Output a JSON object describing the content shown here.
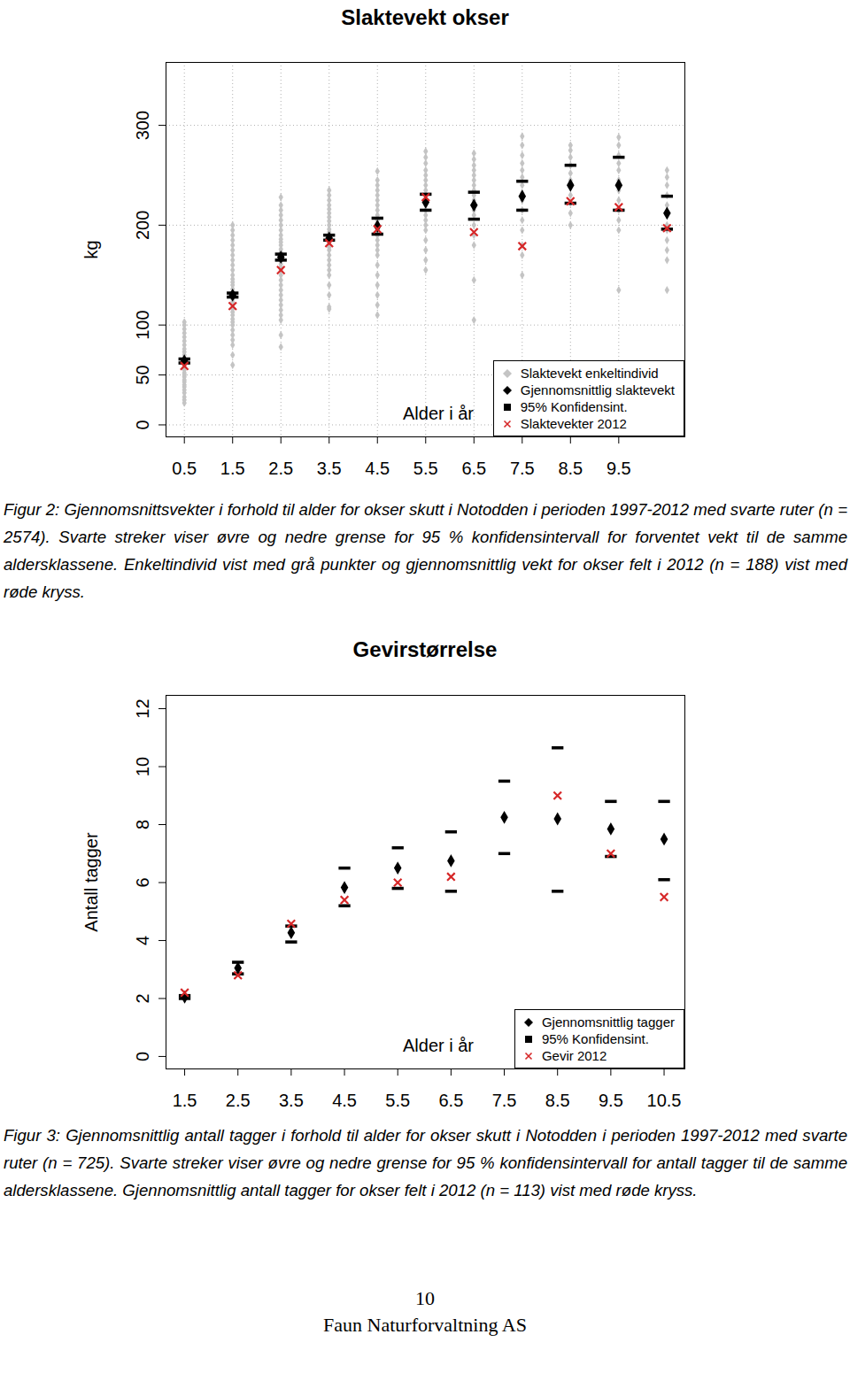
{
  "chart_data": [
    {
      "type": "scatter",
      "title": "Slaktevekt okser",
      "x_label": "Alder i år",
      "y_label": "kg",
      "x": [
        0.5,
        1.5,
        2.5,
        3.5,
        4.5,
        5.5,
        6.5,
        7.5,
        8.5,
        9.5,
        10.5
      ],
      "xlim": [
        0.12,
        10.87
      ],
      "xticks": [
        0.5,
        1.5,
        2.5,
        3.5,
        4.5,
        5.5,
        6.5,
        7.5,
        8.5,
        9.5
      ],
      "ylim": [
        -12,
        363
      ],
      "yticks": [
        0,
        50,
        100,
        200,
        300
      ],
      "grid": true,
      "legend": "bottom-right",
      "series": [
        {
          "name": "Slaktevekt enkeltindivid",
          "color": "#c4c4c4",
          "marker": "diamond",
          "values": [
            [
              22,
              25,
              28,
              32,
              35,
              38,
              40,
              43,
              45,
              48,
              50,
              52,
              55,
              58,
              60,
              63,
              66,
              70,
              73,
              76,
              80,
              84,
              88,
              92,
              96,
              100,
              103
            ],
            [
              60,
              70,
              80,
              85,
              90,
              95,
              100,
              103,
              106,
              110,
              113,
              116,
              120,
              123,
              126,
              130,
              133,
              136,
              140,
              143,
              146,
              150,
              155,
              160,
              165,
              170,
              175,
              180,
              185,
              190,
              195,
              200
            ],
            [
              78,
              90,
              105,
              110,
              115,
              120,
              125,
              130,
              135,
              140,
              145,
              150,
              155,
              158,
              161,
              164,
              167,
              170,
              173,
              176,
              180,
              183,
              186,
              190,
              195,
              200,
              205,
              210,
              215,
              220,
              228
            ],
            [
              116,
              118,
              130,
              140,
              150,
              155,
              160,
              165,
              170,
              175,
              178,
              181,
              184,
              187,
              190,
              193,
              196,
              200,
              204,
              208,
              212,
              216,
              220,
              225,
              230,
              235
            ],
            [
              110,
              120,
              130,
              140,
              150,
              160,
              170,
              175,
              180,
              185,
              190,
              195,
              200,
              205,
              210,
              215,
              220,
              225,
              230,
              235,
              240,
              245,
              254
            ],
            [
              155,
              165,
              175,
              185,
              195,
              200,
              205,
              210,
              215,
              220,
              225,
              230,
              235,
              240,
              245,
              250,
              255,
              262,
              268,
              274
            ],
            [
              105,
              145,
              180,
              190,
              200,
              210,
              215,
              220,
              225,
              230,
              235,
              240,
              245,
              250,
              255,
              260,
              266,
              272
            ],
            [
              150,
              170,
              180,
              195,
              205,
              215,
              225,
              232,
              240,
              248,
              255,
              262,
              270,
              280,
              289
            ],
            [
              200,
              212,
              222,
              230,
              238,
              245,
              252,
              260,
              268,
              275,
              280
            ],
            [
              135,
              195,
              205,
              215,
              225,
              235,
              245,
              255,
              262,
              270,
              280,
              288
            ],
            [
              135,
              165,
              175,
              185,
              195,
              200,
              210,
              220,
              230,
              240,
              248,
              255
            ]
          ]
        },
        {
          "name": "Gjennomsnittlig slaktevekt",
          "color": "#000000",
          "marker": "diamond",
          "values": [
            64,
            130,
            168,
            187,
            199,
            223,
            220,
            229,
            240,
            240,
            212
          ]
        },
        {
          "name": "95% Konfidensint.",
          "color": "#000000",
          "marker": "dash",
          "lower": [
            62,
            128,
            165,
            185,
            191,
            215,
            206,
            215,
            222,
            215,
            196
          ],
          "upper": [
            66,
            132,
            171,
            190,
            207,
            231,
            233,
            244,
            260,
            268,
            229
          ]
        },
        {
          "name": "Slaktevekter 2012",
          "color": "#d62728",
          "marker": "cross",
          "values": [
            59,
            119,
            155,
            182,
            196,
            228,
            193,
            179,
            224,
            218,
            197
          ]
        }
      ]
    },
    {
      "type": "scatter",
      "title": "Gevirstørrelse",
      "x_label": "Alder i år",
      "y_label": "Antall tagger",
      "x": [
        1.5,
        2.5,
        3.5,
        4.5,
        5.5,
        6.5,
        7.5,
        8.5,
        9.5,
        10.5
      ],
      "xlim": [
        1.15,
        10.89
      ],
      "xticks": [
        1.5,
        2.5,
        3.5,
        4.5,
        5.5,
        6.5,
        7.5,
        8.5,
        9.5,
        10.5
      ],
      "ylim": [
        -0.43,
        12.46
      ],
      "yticks": [
        0,
        2,
        4,
        6,
        8,
        10,
        12
      ],
      "grid": false,
      "legend": "bottom-right",
      "series": [
        {
          "name": "95% Konfidensint.",
          "color": "#000000",
          "marker": "dash",
          "lower": [
            2.0,
            2.85,
            3.95,
            5.2,
            5.8,
            5.7,
            7.0,
            5.7,
            6.9,
            6.1
          ],
          "upper": [
            2.1,
            3.25,
            4.5,
            6.5,
            7.2,
            7.75,
            9.5,
            10.65,
            8.8,
            8.8
          ]
        },
        {
          "name": "Gjennomsnittlig tagger",
          "color": "#000000",
          "marker": "diamond",
          "values": [
            2.05,
            3.05,
            4.27,
            5.83,
            6.5,
            6.75,
            8.25,
            8.2,
            7.85,
            7.5
          ]
        },
        {
          "name": "Gevir 2012",
          "color": "#d62728",
          "marker": "cross",
          "values": [
            2.2,
            2.8,
            4.58,
            5.4,
            6.0,
            6.2,
            null,
            9.0,
            7.0,
            5.5
          ]
        }
      ]
    }
  ],
  "captions": [
    "Figur 2: Gjennomsnittsvekter i forhold til alder for okser skutt i Notodden i perioden 1997-2012 med svarte ruter (n = 2574). Svarte streker viser øvre og nedre grense for 95 % konfidensintervall for forventet vekt til de samme aldersklassene. Enkeltindivid vist med grå punkter og gjennomsnittlig vekt for okser felt i 2012 (n = 188) vist med røde kryss.",
    "Figur 3: Gjennomsnittlig antall tagger i forhold til alder for okser skutt i Notodden i perioden 1997-2012 med svarte ruter (n = 725). Svarte streker viser øvre og nedre grense for 95 % konfidensintervall for antall tagger til de samme aldersklassene. Gjennomsnittlig antall tagger for okser felt i 2012 (n = 113) vist med røde kryss."
  ],
  "footer": {
    "page": "10",
    "publisher": "Faun Naturforvaltning AS"
  }
}
